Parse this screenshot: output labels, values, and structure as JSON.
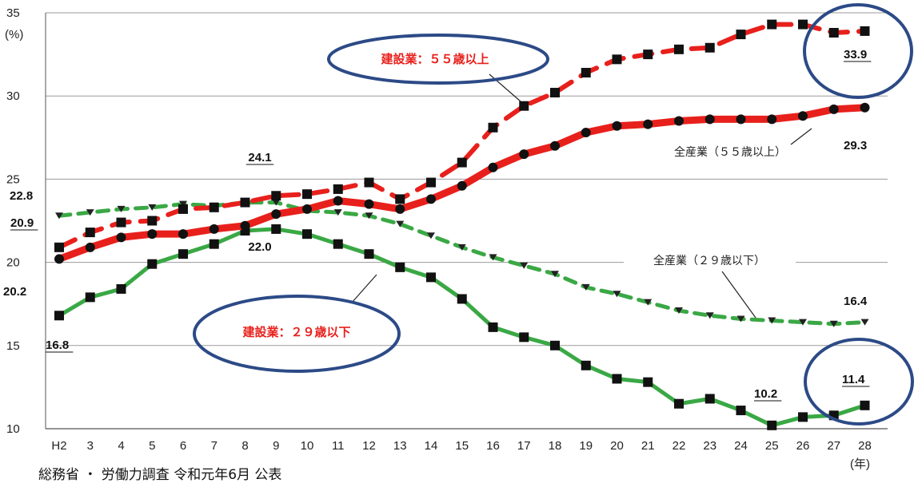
{
  "chart_data": {
    "type": "line",
    "y_unit": "(%)",
    "x_unit": "(年)",
    "ylim": [
      10,
      35
    ],
    "yticks": [
      "35",
      "30",
      "25",
      "20",
      "15",
      "10"
    ],
    "categories": [
      "H2",
      "3",
      "4",
      "5",
      "6",
      "7",
      "8",
      "9",
      "10",
      "11",
      "12",
      "13",
      "14",
      "15",
      "16",
      "17",
      "18",
      "19",
      "20",
      "21",
      "22",
      "23",
      "24",
      "25",
      "26",
      "27",
      "28"
    ],
    "grid": "horizontal",
    "series": [
      {
        "name": "建設業：５５歳以上",
        "color": "#e8201c",
        "style": "dashed",
        "values": [
          20.9,
          21.8,
          22.4,
          22.5,
          23.2,
          23.3,
          23.6,
          24.0,
          24.1,
          24.4,
          24.8,
          23.8,
          24.8,
          26.0,
          28.1,
          29.4,
          30.2,
          31.4,
          32.2,
          32.5,
          32.8,
          32.9,
          33.7,
          34.3,
          34.3,
          33.8,
          33.9
        ]
      },
      {
        "name": "全産業（５５歳以上）",
        "color": "#e8201c",
        "style": "solid",
        "values": [
          20.2,
          20.9,
          21.5,
          21.7,
          21.7,
          22.0,
          22.2,
          22.9,
          23.2,
          23.7,
          23.5,
          23.2,
          23.8,
          24.6,
          25.7,
          26.5,
          27.0,
          27.8,
          28.2,
          28.3,
          28.5,
          28.6,
          28.6,
          28.6,
          28.8,
          29.2,
          29.3
        ]
      },
      {
        "name": "全産業（２９歳以下）",
        "color": "#3aa845",
        "style": "dashed",
        "values": [
          22.8,
          23.0,
          23.2,
          23.3,
          23.5,
          23.4,
          23.6,
          23.6,
          23.1,
          23.0,
          22.8,
          22.3,
          21.6,
          20.9,
          20.3,
          19.8,
          19.3,
          18.5,
          18.1,
          17.6,
          17.1,
          16.8,
          16.6,
          16.5,
          16.4,
          16.3,
          16.4
        ]
      },
      {
        "name": "建設業：２９歳以下",
        "color": "#3aa845",
        "style": "solid",
        "values": [
          16.8,
          17.9,
          18.4,
          19.9,
          20.5,
          21.1,
          21.9,
          22.0,
          21.7,
          21.1,
          20.5,
          19.7,
          19.1,
          17.8,
          16.1,
          15.5,
          15.0,
          13.8,
          13.0,
          12.8,
          11.5,
          11.8,
          11.1,
          10.2,
          10.7,
          10.8,
          11.4
        ]
      }
    ],
    "data_labels": [
      {
        "series": 0,
        "index": 0,
        "text": "20.9"
      },
      {
        "series": 0,
        "index": 8,
        "text": "24.1"
      },
      {
        "series": 0,
        "index": 26,
        "text": "33.9"
      },
      {
        "series": 1,
        "index": 0,
        "text": "20.2"
      },
      {
        "series": 1,
        "index": 26,
        "text": "29.3"
      },
      {
        "series": 2,
        "index": 0,
        "text": "22.8"
      },
      {
        "series": 2,
        "index": 26,
        "text": "16.4"
      },
      {
        "series": 3,
        "index": 0,
        "text": "16.8"
      },
      {
        "series": 3,
        "index": 7,
        "text": "22.0"
      },
      {
        "series": 3,
        "index": 23,
        "text": "10.2"
      },
      {
        "series": 3,
        "index": 26,
        "text": "11.4"
      }
    ]
  },
  "source_note": "総務省 ・ 労働力調査 令和元年6月 公表"
}
